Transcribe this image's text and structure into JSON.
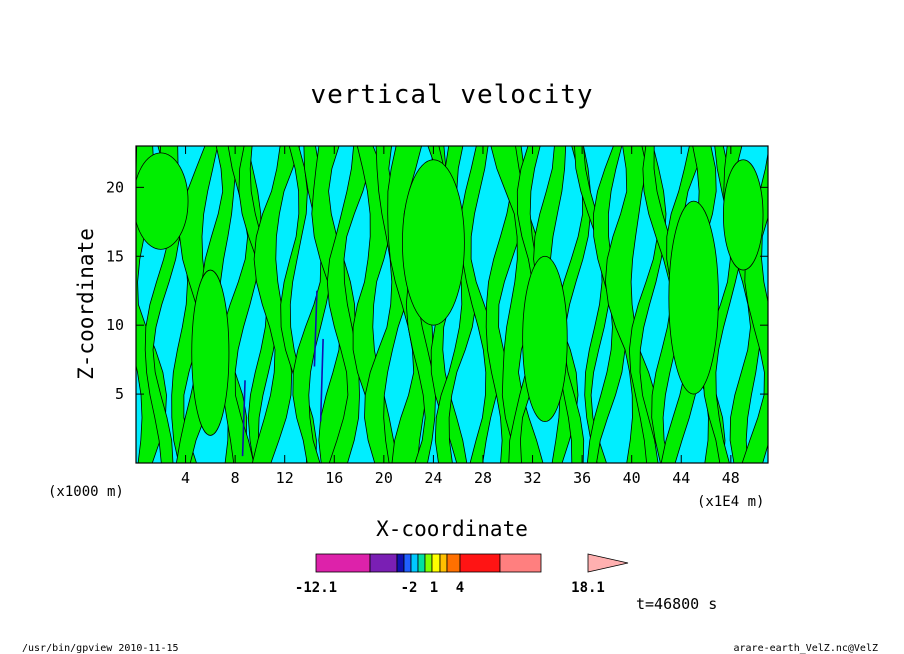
{
  "chart_data": {
    "type": "heatmap",
    "title": "vertical velocity",
    "xlabel": "X-coordinate",
    "ylabel": "Z-coordinate",
    "x_unit_left": "(x1000 m)",
    "x_unit_right": "(x1E4 m)",
    "xlim": [
      0,
      51
    ],
    "ylim": [
      0,
      23
    ],
    "x_ticks": [
      4,
      8,
      12,
      16,
      20,
      24,
      28,
      32,
      36,
      40,
      44,
      48
    ],
    "y_ticks": [
      5,
      10,
      15,
      20
    ],
    "colorbar": {
      "tick_labels": [
        {
          "label": "-12.1",
          "value": -12.1
        },
        {
          "label": "-2",
          "value": -2
        },
        {
          "label": "1",
          "value": 1
        },
        {
          "label": "4",
          "value": 4
        },
        {
          "label": "18.1",
          "value": 18.1
        }
      ],
      "colors": [
        "#dd22aa",
        "#7a1fb4",
        "#1010b0",
        "#2060ff",
        "#00c8ff",
        "#00e0a0",
        "#80ff00",
        "#ffff00",
        "#ffc000",
        "#ff7000",
        "#ff1414",
        "#ff7f7f",
        "#ffb0b0"
      ],
      "extend_right": true
    },
    "dominant_colors": {
      "positive": "#00ee00",
      "negative": "#00eeff",
      "contour": "#000000"
    },
    "time_label": "t=46800 s",
    "grid": false
  },
  "footer": {
    "left": "/usr/bin/gpview   2010-11-15",
    "right": "arare-earth_VelZ.nc@VelZ"
  }
}
